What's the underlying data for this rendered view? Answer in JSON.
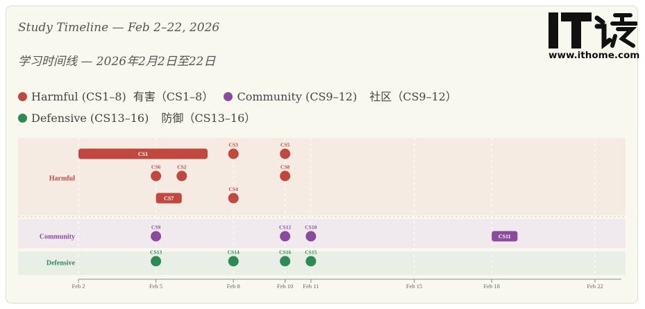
{
  "title": "Study Timeline — Feb 2–22, 2026",
  "subtitle": "学习时间线 — 2026年2月2日至22日",
  "watermark": {
    "text": "www.ithome.com",
    "logo_label": "IT之家"
  },
  "colors": {
    "harmful": "#c0483f",
    "community": "#8b4a9c",
    "defensive": "#2e8a55"
  },
  "legend": [
    {
      "label": "Harmful (CS1–8)",
      "label_zh": "有害（CS1–8）",
      "color": "#c0483f"
    },
    {
      "label": "Community (CS9–12)",
      "label_zh": "社区（CS9–12）",
      "color": "#8b4a9c"
    },
    {
      "label": "Defensive (CS13–16)",
      "label_zh": "防御（CS13–16）",
      "color": "#2e8a55"
    }
  ],
  "chart_data": {
    "type": "scatter",
    "x_axis": {
      "ticks": [
        "Feb 2",
        "Feb 5",
        "Feb 8",
        "Feb 10",
        "Feb 11",
        "Feb 15",
        "Feb 18",
        "Feb 22"
      ],
      "range": [
        "2026-02-02",
        "2026-02-22"
      ]
    },
    "lanes": [
      "Harmful",
      "Community",
      "Defensive"
    ],
    "events": [
      {
        "label": "CS1",
        "lane": "Harmful",
        "row": 0,
        "start": "2026-02-02",
        "end": "2026-02-07",
        "kind": "span"
      },
      {
        "label": "CS3",
        "lane": "Harmful",
        "row": 0,
        "start": "2026-02-08",
        "kind": "point"
      },
      {
        "label": "CS5",
        "lane": "Harmful",
        "row": 0,
        "start": "2026-02-10",
        "kind": "point"
      },
      {
        "label": "CS6",
        "lane": "Harmful",
        "row": 1,
        "start": "2026-02-05",
        "kind": "point"
      },
      {
        "label": "CS2",
        "lane": "Harmful",
        "row": 1,
        "start": "2026-02-06",
        "kind": "point"
      },
      {
        "label": "CS8",
        "lane": "Harmful",
        "row": 1,
        "start": "2026-02-10",
        "kind": "point"
      },
      {
        "label": "CS7",
        "lane": "Harmful",
        "row": 2,
        "start": "2026-02-05",
        "end": "2026-02-06",
        "kind": "span"
      },
      {
        "label": "CS4",
        "lane": "Harmful",
        "row": 2,
        "start": "2026-02-08",
        "kind": "point"
      },
      {
        "label": "CS9",
        "lane": "Community",
        "row": 0,
        "start": "2026-02-05",
        "kind": "point"
      },
      {
        "label": "CS12",
        "lane": "Community",
        "row": 0,
        "start": "2026-02-10",
        "kind": "point"
      },
      {
        "label": "CS10",
        "lane": "Community",
        "row": 0,
        "start": "2026-02-11",
        "kind": "point"
      },
      {
        "label": "CS11",
        "lane": "Community",
        "row": 0,
        "start": "2026-02-18",
        "end": "2026-02-19",
        "kind": "span"
      },
      {
        "label": "CS13",
        "lane": "Defensive",
        "row": 0,
        "start": "2026-02-05",
        "kind": "point"
      },
      {
        "label": "CS14",
        "lane": "Defensive",
        "row": 0,
        "start": "2026-02-08",
        "kind": "point"
      },
      {
        "label": "CS16",
        "lane": "Defensive",
        "row": 0,
        "start": "2026-02-10",
        "kind": "point"
      },
      {
        "label": "CS15",
        "lane": "Defensive",
        "row": 0,
        "start": "2026-02-11",
        "kind": "point"
      }
    ],
    "grid": true,
    "legend_position": "top"
  }
}
